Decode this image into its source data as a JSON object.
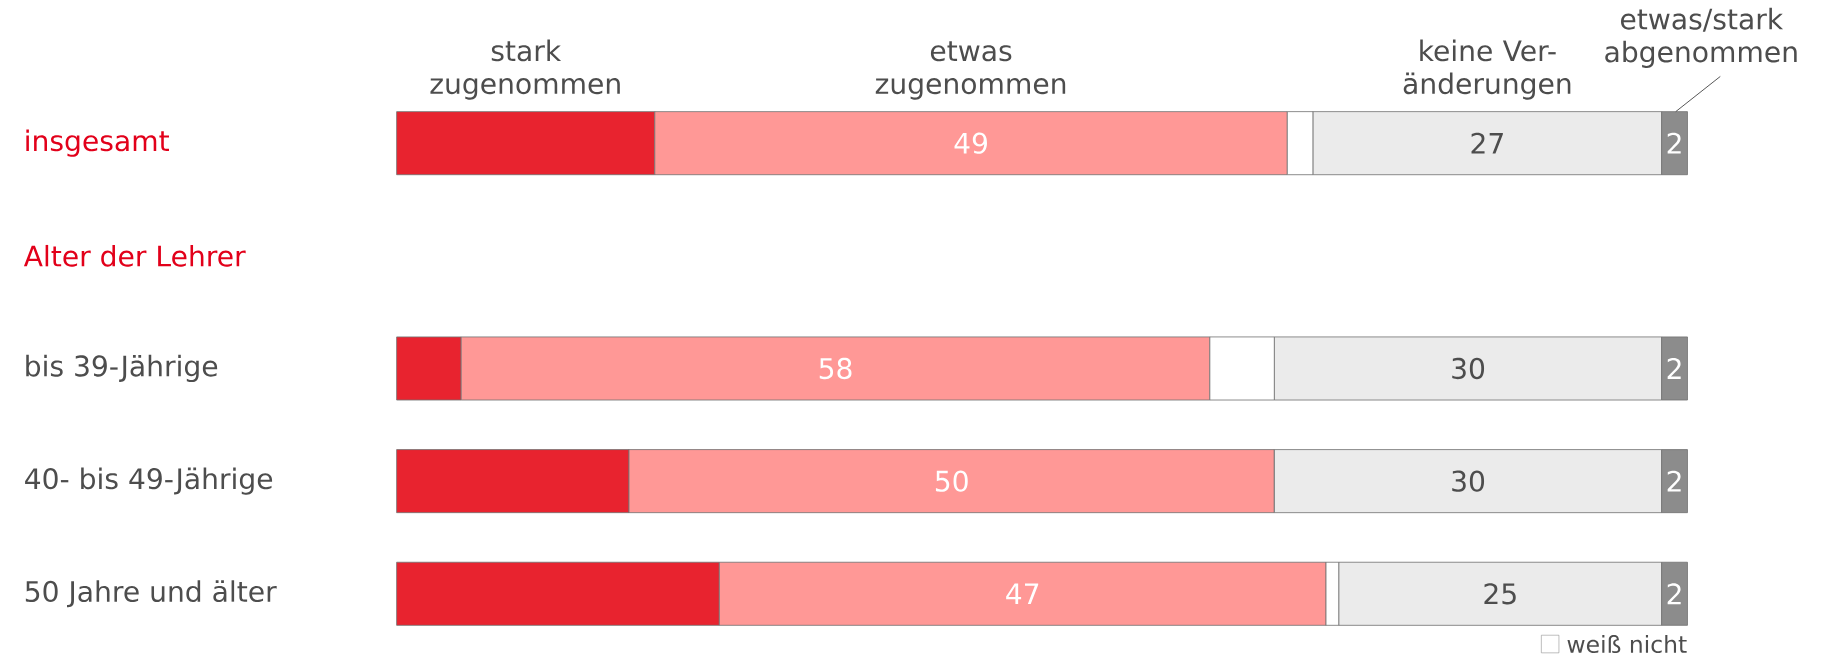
{
  "chart_data": {
    "type": "bar",
    "orientation": "horizontal",
    "stacked": true,
    "categories": [
      "insgesamt",
      "Alter der Lehrer",
      "bis 39-Jährige",
      "40- bis 49-Jährige",
      "50 Jahre und älter"
    ],
    "series": [
      {
        "name": "stark zugenommen",
        "color": "#e8232f",
        "values": [
          20,
          null,
          5,
          18,
          25
        ]
      },
      {
        "name": "etwas zugenommen",
        "color": "#ff9896",
        "values": [
          49,
          null,
          58,
          50,
          47
        ],
        "value_labels": [
          "49",
          null,
          "58",
          "50",
          "47"
        ]
      },
      {
        "name": "weiß nicht",
        "color": "#ffffff",
        "values": [
          2,
          null,
          5,
          0,
          1
        ]
      },
      {
        "name": "keine Ver- änderungen",
        "color": "#ebebeb",
        "values": [
          27,
          null,
          30,
          30,
          25
        ],
        "value_labels": [
          "27",
          null,
          "30",
          "30",
          "25"
        ]
      },
      {
        "name": "etwas/stark abgenommen",
        "color": "#8c8c8c",
        "values": [
          2,
          null,
          2,
          2,
          2
        ],
        "value_labels": [
          "2",
          null,
          "2",
          "2",
          "2"
        ]
      }
    ],
    "legend": "bottom right"
  }
}
